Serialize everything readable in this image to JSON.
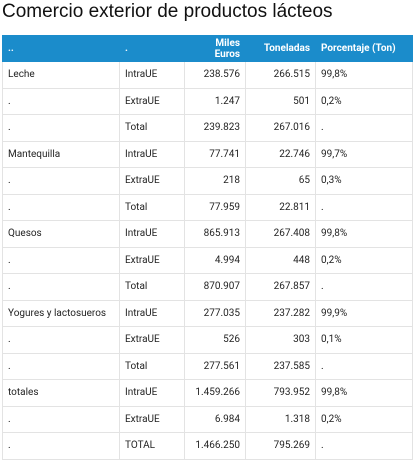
{
  "title": "Comercio exterior de productos lácteos",
  "table": {
    "header": [
      "..",
      ".",
      "Miles Euros",
      "Toneladas",
      "Porcentaje (Ton)"
    ],
    "rows": [
      [
        "Leche",
        "IntraUE",
        "238.576",
        "266.515",
        "99,8%"
      ],
      [
        ".",
        "ExtraUE",
        "1.247",
        "501",
        "0,2%"
      ],
      [
        ".",
        "Total",
        "239.823",
        "267.016",
        "."
      ],
      [
        "Mantequilla",
        "IntraUE",
        "77.741",
        "22.746",
        "99,7%"
      ],
      [
        ".",
        "ExtraUE",
        "218",
        "65",
        "0,3%"
      ],
      [
        ".",
        "Total",
        "77.959",
        "22.811",
        "."
      ],
      [
        "Quesos",
        "IntraUE",
        "865.913",
        "267.408",
        "99,8%"
      ],
      [
        ".",
        "ExtraUE",
        "4.994",
        "448",
        "0,2%"
      ],
      [
        ".",
        "Total",
        "870.907",
        "267.857",
        "."
      ],
      [
        "Yogures y lactosueros",
        "IntraUE",
        "277.035",
        "237.282",
        "99,9%"
      ],
      [
        ".",
        "ExtraUE",
        "526",
        "303",
        "0,1%"
      ],
      [
        ".",
        "Total",
        "277.561",
        "237.585",
        "."
      ],
      [
        "totales",
        "IntraUE",
        "1.459.266",
        "793.952",
        "99,8%"
      ],
      [
        ".",
        "ExtraUE",
        "6.984",
        "1.318",
        "0,2%"
      ],
      [
        ".",
        "TOTAL",
        "1.466.250",
        "795.269",
        "."
      ]
    ]
  }
}
